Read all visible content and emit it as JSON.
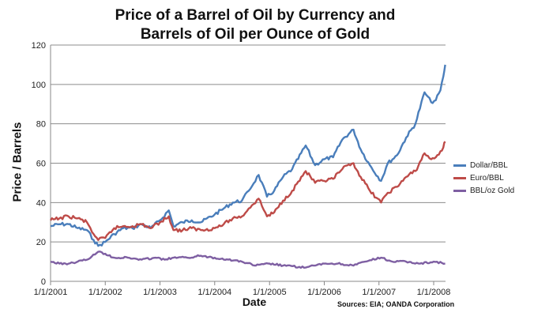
{
  "chart_data": {
    "type": "line",
    "title_line1": "Price of a Barrel of Oil by Currency and",
    "title_line2": "Barrels of Oil per Ounce of Gold",
    "xlabel": "Date",
    "ylabel": "Price / Barrels",
    "source": "Sources: EIA; OANDA Corporation",
    "ylim": [
      0,
      120
    ],
    "yticks": [
      0,
      20,
      40,
      60,
      80,
      100,
      120
    ],
    "xlim": [
      "2001-01-01",
      "2008-03-20"
    ],
    "xticks": [
      "1/1/2001",
      "1/1/2002",
      "1/1/2003",
      "1/1/2004",
      "1/1/2005",
      "1/1/2006",
      "1/1/2007",
      "1/1/2008"
    ],
    "grid": true,
    "legend_position": "right",
    "series": [
      {
        "name": "Dollar/BBL",
        "color": "#4a7ebb",
        "points": [
          [
            "2001-01-01",
            28
          ],
          [
            "2001-03-01",
            29
          ],
          [
            "2001-05-01",
            29
          ],
          [
            "2001-07-01",
            27
          ],
          [
            "2001-09-01",
            26
          ],
          [
            "2001-10-15",
            21
          ],
          [
            "2001-11-15",
            18
          ],
          [
            "2002-01-01",
            20
          ],
          [
            "2002-03-01",
            24
          ],
          [
            "2002-05-01",
            27
          ],
          [
            "2002-07-01",
            27
          ],
          [
            "2002-09-01",
            29
          ],
          [
            "2002-11-01",
            27
          ],
          [
            "2003-01-01",
            31
          ],
          [
            "2003-03-01",
            36
          ],
          [
            "2003-04-01",
            28
          ],
          [
            "2003-06-01",
            30
          ],
          [
            "2003-08-01",
            31
          ],
          [
            "2003-10-01",
            30
          ],
          [
            "2004-01-01",
            34
          ],
          [
            "2004-03-01",
            37
          ],
          [
            "2004-05-01",
            40
          ],
          [
            "2004-07-01",
            41
          ],
          [
            "2004-08-15",
            46
          ],
          [
            "2004-10-20",
            54
          ],
          [
            "2004-12-15",
            43
          ],
          [
            "2005-02-01",
            46
          ],
          [
            "2005-04-01",
            53
          ],
          [
            "2005-06-01",
            57
          ],
          [
            "2005-08-30",
            69
          ],
          [
            "2005-11-01",
            59
          ],
          [
            "2006-01-01",
            62
          ],
          [
            "2006-03-01",
            63
          ],
          [
            "2006-05-01",
            72
          ],
          [
            "2006-07-15",
            77
          ],
          [
            "2006-09-01",
            67
          ],
          [
            "2006-11-01",
            59
          ],
          [
            "2007-01-15",
            51
          ],
          [
            "2007-03-01",
            60
          ],
          [
            "2007-05-01",
            64
          ],
          [
            "2007-07-01",
            73
          ],
          [
            "2007-09-01",
            80
          ],
          [
            "2007-11-01",
            96
          ],
          [
            "2007-12-15",
            91
          ],
          [
            "2008-01-15",
            92
          ],
          [
            "2008-02-15",
            97
          ],
          [
            "2008-03-05",
            104
          ],
          [
            "2008-03-18",
            110
          ]
        ]
      },
      {
        "name": "Euro/BBL",
        "color": "#be4b48",
        "points": [
          [
            "2001-01-01",
            31
          ],
          [
            "2001-03-01",
            32
          ],
          [
            "2001-05-01",
            33
          ],
          [
            "2001-07-01",
            32
          ],
          [
            "2001-09-01",
            30
          ],
          [
            "2001-10-15",
            24
          ],
          [
            "2001-11-15",
            21
          ],
          [
            "2002-01-01",
            22
          ],
          [
            "2002-03-01",
            27
          ],
          [
            "2002-05-01",
            28
          ],
          [
            "2002-07-01",
            28
          ],
          [
            "2002-09-01",
            29
          ],
          [
            "2002-11-01",
            27
          ],
          [
            "2003-01-01",
            30
          ],
          [
            "2003-03-01",
            33
          ],
          [
            "2003-04-01",
            26
          ],
          [
            "2003-06-01",
            26
          ],
          [
            "2003-08-01",
            27
          ],
          [
            "2003-10-01",
            26
          ],
          [
            "2004-01-01",
            27
          ],
          [
            "2004-03-01",
            29
          ],
          [
            "2004-05-01",
            32
          ],
          [
            "2004-07-01",
            33
          ],
          [
            "2004-08-15",
            37
          ],
          [
            "2004-10-20",
            42
          ],
          [
            "2004-12-15",
            33
          ],
          [
            "2005-02-01",
            35
          ],
          [
            "2005-04-01",
            41
          ],
          [
            "2005-06-01",
            46
          ],
          [
            "2005-08-30",
            56
          ],
          [
            "2005-11-01",
            50
          ],
          [
            "2006-01-01",
            51
          ],
          [
            "2006-03-01",
            52
          ],
          [
            "2006-05-01",
            57
          ],
          [
            "2006-07-15",
            60
          ],
          [
            "2006-09-01",
            53
          ],
          [
            "2006-11-01",
            46
          ],
          [
            "2007-01-15",
            40
          ],
          [
            "2007-03-01",
            45
          ],
          [
            "2007-05-01",
            48
          ],
          [
            "2007-07-01",
            53
          ],
          [
            "2007-09-01",
            56
          ],
          [
            "2007-11-01",
            65
          ],
          [
            "2007-12-15",
            62
          ],
          [
            "2008-01-15",
            63
          ],
          [
            "2008-02-15",
            66
          ],
          [
            "2008-03-05",
            68
          ],
          [
            "2008-03-18",
            71
          ]
        ]
      },
      {
        "name": "BBL/oz Gold",
        "color": "#7e5fa2",
        "points": [
          [
            "2001-01-01",
            10
          ],
          [
            "2001-03-01",
            9
          ],
          [
            "2001-05-01",
            9
          ],
          [
            "2001-07-01",
            10
          ],
          [
            "2001-09-01",
            11
          ],
          [
            "2001-11-15",
            15
          ],
          [
            "2002-01-01",
            14
          ],
          [
            "2002-03-01",
            12
          ],
          [
            "2002-06-01",
            12
          ],
          [
            "2002-09-01",
            11
          ],
          [
            "2002-12-01",
            12
          ],
          [
            "2003-02-01",
            11
          ],
          [
            "2003-04-01",
            12
          ],
          [
            "2003-07-01",
            12
          ],
          [
            "2003-10-01",
            13
          ],
          [
            "2004-01-01",
            12
          ],
          [
            "2004-04-01",
            11
          ],
          [
            "2004-07-01",
            10
          ],
          [
            "2004-10-01",
            8
          ],
          [
            "2005-01-01",
            9
          ],
          [
            "2005-04-01",
            8
          ],
          [
            "2005-08-30",
            7
          ],
          [
            "2005-11-01",
            8
          ],
          [
            "2006-01-01",
            9
          ],
          [
            "2006-04-01",
            9
          ],
          [
            "2006-07-15",
            8
          ],
          [
            "2006-10-01",
            10
          ],
          [
            "2007-01-15",
            12
          ],
          [
            "2007-04-01",
            10
          ],
          [
            "2007-07-01",
            10
          ],
          [
            "2007-10-01",
            9
          ],
          [
            "2008-01-01",
            10
          ],
          [
            "2008-03-18",
            9
          ]
        ]
      }
    ]
  }
}
